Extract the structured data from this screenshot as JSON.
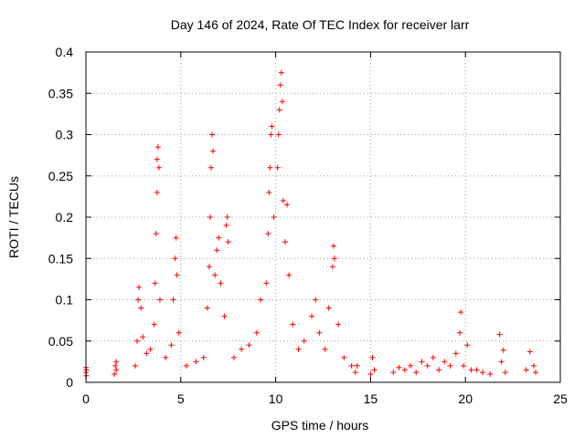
{
  "chart_data": {
    "type": "scatter",
    "title": "Day 146 of 2024, Rate Of TEC Index for receiver larr",
    "xlabel": "GPS time / hours",
    "ylabel": "ROTI / TECUs",
    "xlim": [
      0,
      25
    ],
    "ylim": [
      0,
      0.4
    ],
    "xticks": [
      0,
      5,
      10,
      15,
      20,
      25
    ],
    "xtick_labels": [
      "0",
      "5",
      "10",
      "15",
      "20",
      "25"
    ],
    "yticks": [
      0,
      0.05,
      0.1,
      0.15,
      0.2,
      0.25,
      0.3,
      0.35,
      0.4
    ],
    "ytick_labels": [
      "0",
      "0.05",
      "0.1",
      "0.15",
      "0.2",
      "0.25",
      "0.3",
      "0.35",
      "0.4"
    ],
    "grid": true,
    "marker": "+",
    "color": "#ff0000",
    "points": [
      [
        0.0,
        0.012
      ],
      [
        0.0,
        0.018
      ],
      [
        0.02,
        0.008
      ],
      [
        0.02,
        0.015
      ],
      [
        1.5,
        0.01
      ],
      [
        1.55,
        0.02
      ],
      [
        1.6,
        0.025
      ],
      [
        1.6,
        0.015
      ],
      [
        2.6,
        0.02
      ],
      [
        2.7,
        0.05
      ],
      [
        2.75,
        0.1
      ],
      [
        2.8,
        0.115
      ],
      [
        2.9,
        0.09
      ],
      [
        3.0,
        0.055
      ],
      [
        3.2,
        0.035
      ],
      [
        3.4,
        0.04
      ],
      [
        3.6,
        0.07
      ],
      [
        3.65,
        0.12
      ],
      [
        3.7,
        0.18
      ],
      [
        3.75,
        0.23
      ],
      [
        3.75,
        0.27
      ],
      [
        3.8,
        0.285
      ],
      [
        3.85,
        0.26
      ],
      [
        3.9,
        0.1
      ],
      [
        4.2,
        0.03
      ],
      [
        4.5,
        0.045
      ],
      [
        4.6,
        0.1
      ],
      [
        4.7,
        0.15
      ],
      [
        4.75,
        0.175
      ],
      [
        4.8,
        0.13
      ],
      [
        4.9,
        0.06
      ],
      [
        5.3,
        0.02
      ],
      [
        5.8,
        0.025
      ],
      [
        6.2,
        0.03
      ],
      [
        6.4,
        0.09
      ],
      [
        6.5,
        0.14
      ],
      [
        6.55,
        0.2
      ],
      [
        6.6,
        0.26
      ],
      [
        6.65,
        0.3
      ],
      [
        6.7,
        0.28
      ],
      [
        6.8,
        0.13
      ],
      [
        6.9,
        0.16
      ],
      [
        7.0,
        0.175
      ],
      [
        7.1,
        0.12
      ],
      [
        7.3,
        0.08
      ],
      [
        7.4,
        0.19
      ],
      [
        7.45,
        0.2
      ],
      [
        7.5,
        0.17
      ],
      [
        7.8,
        0.03
      ],
      [
        8.2,
        0.04
      ],
      [
        8.6,
        0.045
      ],
      [
        9.0,
        0.06
      ],
      [
        9.2,
        0.1
      ],
      [
        9.5,
        0.12
      ],
      [
        9.6,
        0.18
      ],
      [
        9.65,
        0.23
      ],
      [
        9.7,
        0.26
      ],
      [
        9.75,
        0.3
      ],
      [
        9.8,
        0.31
      ],
      [
        9.9,
        0.2
      ],
      [
        10.1,
        0.26
      ],
      [
        10.15,
        0.3
      ],
      [
        10.2,
        0.33
      ],
      [
        10.25,
        0.36
      ],
      [
        10.3,
        0.375
      ],
      [
        10.35,
        0.34
      ],
      [
        10.4,
        0.22
      ],
      [
        10.5,
        0.17
      ],
      [
        10.6,
        0.215
      ],
      [
        10.7,
        0.13
      ],
      [
        10.9,
        0.07
      ],
      [
        11.2,
        0.04
      ],
      [
        11.5,
        0.05
      ],
      [
        11.9,
        0.08
      ],
      [
        12.1,
        0.1
      ],
      [
        12.3,
        0.06
      ],
      [
        12.6,
        0.04
      ],
      [
        12.8,
        0.09
      ],
      [
        13.0,
        0.14
      ],
      [
        13.05,
        0.165
      ],
      [
        13.1,
        0.15
      ],
      [
        13.3,
        0.07
      ],
      [
        13.6,
        0.03
      ],
      [
        14.0,
        0.02
      ],
      [
        14.2,
        0.012
      ],
      [
        14.3,
        0.02
      ],
      [
        15.0,
        0.01
      ],
      [
        15.1,
        0.03
      ],
      [
        15.2,
        0.015
      ],
      [
        16.2,
        0.012
      ],
      [
        16.5,
        0.018
      ],
      [
        16.8,
        0.015
      ],
      [
        17.1,
        0.02
      ],
      [
        17.4,
        0.012
      ],
      [
        17.7,
        0.025
      ],
      [
        18.0,
        0.02
      ],
      [
        18.3,
        0.03
      ],
      [
        18.6,
        0.015
      ],
      [
        18.9,
        0.025
      ],
      [
        19.2,
        0.02
      ],
      [
        19.5,
        0.035
      ],
      [
        19.7,
        0.06
      ],
      [
        19.75,
        0.085
      ],
      [
        19.9,
        0.02
      ],
      [
        20.1,
        0.045
      ],
      [
        20.3,
        0.015
      ],
      [
        20.6,
        0.015
      ],
      [
        20.9,
        0.012
      ],
      [
        21.3,
        0.01
      ],
      [
        21.8,
        0.058
      ],
      [
        21.9,
        0.025
      ],
      [
        22.0,
        0.039
      ],
      [
        22.1,
        0.012
      ],
      [
        23.2,
        0.015
      ],
      [
        23.4,
        0.037
      ],
      [
        23.6,
        0.02
      ],
      [
        23.7,
        0.012
      ]
    ]
  }
}
